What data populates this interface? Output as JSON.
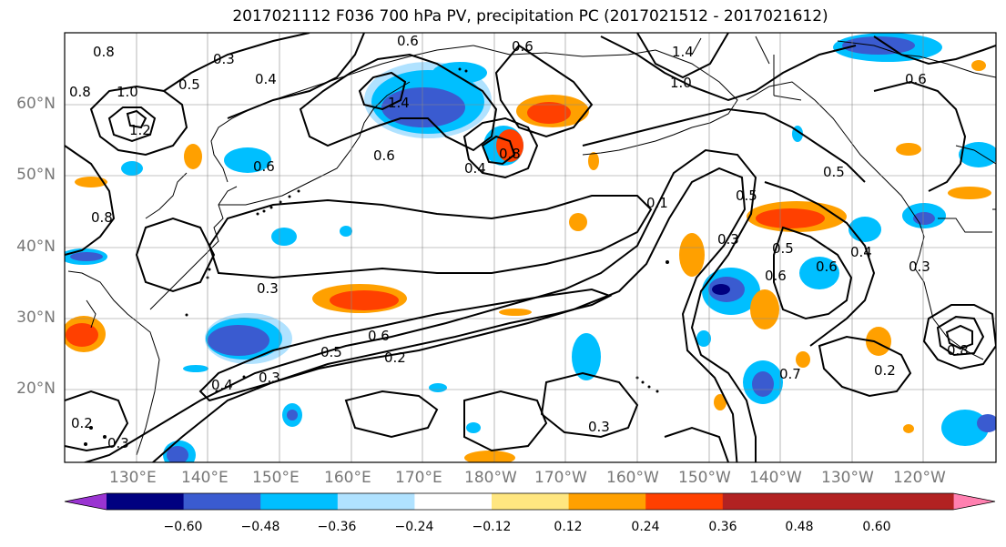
{
  "title": "2017021112 F036 700 hPa PV, precipitation PC (2017021512 - 2017021612)",
  "lat_labels": [
    "60°N",
    "50°N",
    "40°N",
    "30°N",
    "20°N"
  ],
  "lon_labels": [
    "130°E",
    "140°E",
    "150°E",
    "160°E",
    "170°E",
    "180°W",
    "170°W",
    "160°W",
    "150°W",
    "140°W",
    "130°W",
    "120°W"
  ],
  "colorbar": {
    "ticks": [
      "−0.60",
      "−0.48",
      "−0.36",
      "−0.24",
      "−0.12",
      "0.12",
      "0.24",
      "0.36",
      "0.48",
      "0.60"
    ],
    "colors": [
      "#9a34d1",
      "#000080",
      "#3a5bd0",
      "#00bfff",
      "#b0e2ff",
      "#ffffff",
      "#ffe680",
      "#ffa000",
      "#ff4000",
      "#b22222",
      "#ff80b0"
    ]
  },
  "contour_labels": [
    "0.8",
    "0.8",
    "0.6",
    "1.4",
    "0.3",
    "0.4",
    "1.0",
    "0.5",
    "1.2",
    "0.8",
    "1.0",
    "1.4",
    "0.6",
    "0.6",
    "0.4",
    "0.6",
    "0.6",
    "0.5",
    "0.8",
    "0.1",
    "0.5",
    "0.3",
    "0.6",
    "0.5",
    "0.4",
    "0.6",
    "0.3",
    "0.3",
    "0.6",
    "0.5",
    "0.4",
    "0.3",
    "0.2",
    "0.3",
    "0.2",
    "0.2",
    "0.7",
    "0.8",
    "0.3"
  ]
}
